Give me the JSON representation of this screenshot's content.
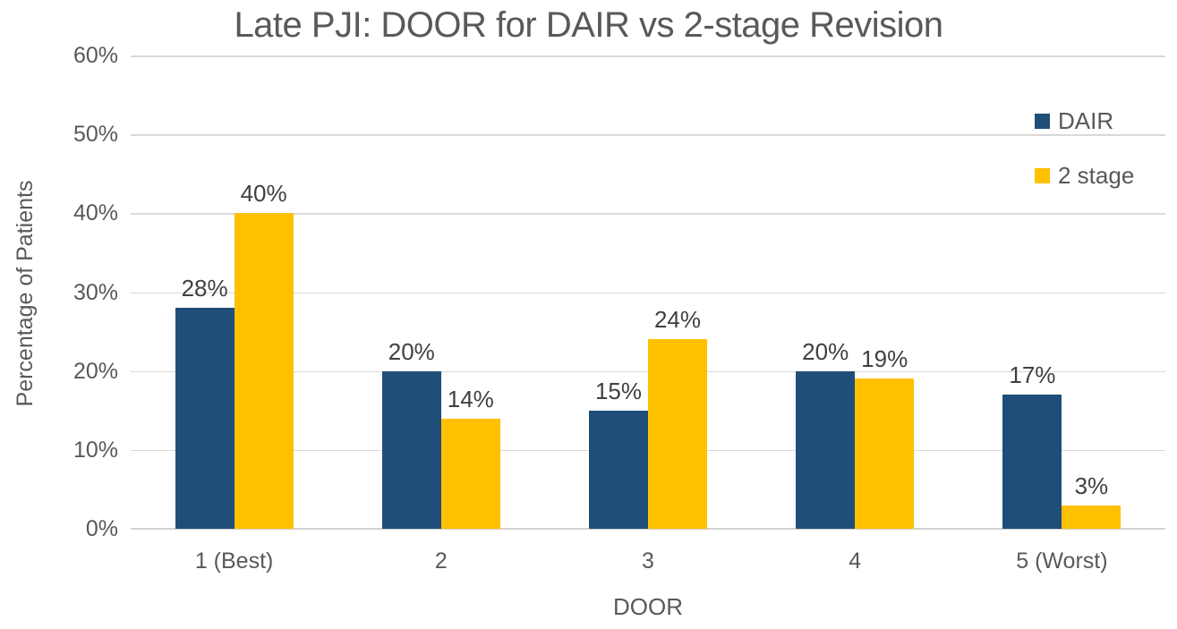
{
  "chart_data": {
    "type": "bar",
    "title": "Late PJI: DOOR for DAIR vs 2-stage Revision",
    "xlabel": "DOOR",
    "ylabel": "Percentage of Patients",
    "categories": [
      "1 (Best)",
      "2",
      "3",
      "4",
      "5 (Worst)"
    ],
    "series": [
      {
        "name": "DAIR",
        "color": "#1F4E79",
        "values": [
          28,
          20,
          15,
          20,
          17
        ],
        "data_labels": [
          "28%",
          "20%",
          "15%",
          "20%",
          "17%"
        ]
      },
      {
        "name": "2 stage",
        "color": "#FFC000",
        "values": [
          40,
          14,
          24,
          19,
          3
        ],
        "data_labels": [
          "40%",
          "14%",
          "24%",
          "19%",
          "3%"
        ]
      }
    ],
    "ylim": [
      0,
      60
    ],
    "ytick_step": 10,
    "ytick_labels": [
      "0%",
      "10%",
      "20%",
      "30%",
      "40%",
      "50%",
      "60%"
    ],
    "grid": true,
    "legend_position": "right-top",
    "colors": {
      "title_text": "#595959",
      "axis_text": "#595959",
      "data_label_text": "#404040",
      "gridline": "#D9D9D9"
    }
  }
}
